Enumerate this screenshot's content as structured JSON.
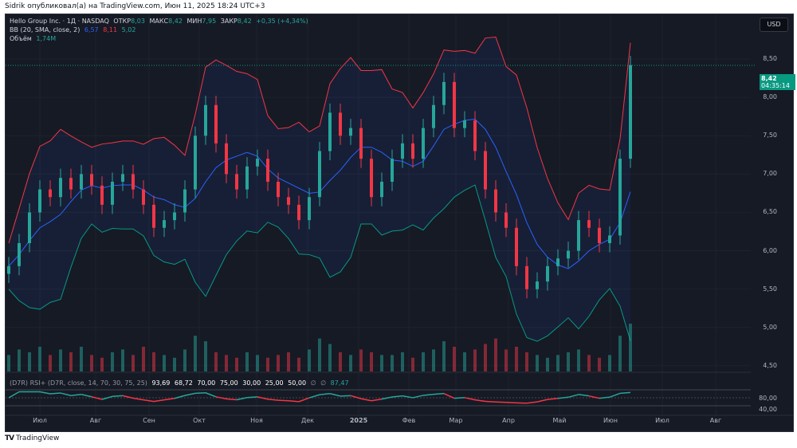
{
  "publisher_line": "Sidrik опубликовал(а) на TradingView.com, Июн 11, 2025 18:24 UTC+3",
  "symbol": {
    "title": "Hello Group Inc. · 1Д · NASDAQ",
    "open_label": "ОТКР",
    "open": "8,03",
    "high_label": "МАКС",
    "high": "8,42",
    "low_label": "МИН",
    "low": "7,95",
    "close_label": "ЗАКР",
    "close": "8,42",
    "change": "+0,35 (+4,34%)"
  },
  "bb": {
    "label": "BB (20, SMA, close, 2)",
    "basis": "6,57",
    "upper": "8,11",
    "lower": "5,02"
  },
  "volume": {
    "label": "Объём",
    "value": "1,74M"
  },
  "rsi": {
    "label": "(D7R) RSI+ (D7R, close, 14, 70, 30, 75, 25)",
    "values": [
      "93,69",
      "68,72",
      "70,00",
      "75,00",
      "30,00",
      "25,00",
      "50,00"
    ],
    "na": [
      "∅",
      "∅"
    ],
    "last": "87,47",
    "axis": [
      "80,00",
      "40,00"
    ]
  },
  "currency": "USD",
  "price_axis": [
    "8,50",
    "8,00",
    "7,50",
    "7,00",
    "6,50",
    "6,00",
    "5,50",
    "5,00",
    "4,50"
  ],
  "last_price": {
    "price": "8,42",
    "countdown": "04:35:14"
  },
  "time_axis": [
    "Июл",
    "Авг",
    "Сен",
    "Окт",
    "Ноя",
    "Дек",
    "2025",
    "Фев",
    "Мар",
    "Апр",
    "Май",
    "Июн",
    "Июл",
    "Авг"
  ],
  "footer": "TradingView",
  "colors": {
    "up": "#26a69a",
    "down": "#f23645",
    "basis": "#2962ff",
    "upper": "#f23645",
    "lower": "#089981",
    "bg": "#161a25"
  },
  "chart_data": {
    "type": "candlestick",
    "ylim": [
      4.5,
      8.5
    ],
    "closes": [
      5.8,
      6.1,
      6.5,
      6.8,
      6.7,
      6.95,
      6.8,
      7.0,
      6.85,
      6.6,
      6.9,
      7.0,
      6.8,
      6.6,
      6.3,
      6.4,
      6.5,
      6.8,
      7.5,
      7.9,
      7.4,
      7.0,
      6.8,
      7.1,
      7.2,
      6.9,
      6.7,
      6.6,
      6.4,
      6.7,
      7.3,
      7.8,
      7.5,
      7.6,
      7.2,
      6.7,
      6.9,
      7.2,
      7.4,
      7.2,
      7.6,
      7.9,
      8.2,
      7.6,
      7.7,
      7.3,
      6.8,
      6.5,
      6.3,
      5.8,
      5.5,
      5.6,
      5.8,
      5.9,
      6.0,
      6.4,
      6.3,
      6.1,
      6.2,
      7.2,
      8.42
    ],
    "volume_m": [
      0.6,
      0.8,
      0.7,
      0.9,
      0.6,
      0.8,
      0.7,
      0.9,
      0.6,
      0.5,
      0.7,
      0.8,
      0.6,
      0.9,
      0.7,
      0.6,
      0.5,
      0.8,
      1.3,
      1.1,
      0.7,
      0.6,
      0.5,
      0.7,
      0.6,
      0.5,
      0.6,
      0.7,
      0.5,
      0.8,
      1.2,
      1.0,
      0.7,
      0.6,
      0.8,
      0.7,
      0.6,
      0.6,
      0.7,
      0.5,
      0.7,
      0.8,
      1.1,
      0.9,
      0.7,
      0.8,
      1.0,
      1.2,
      0.8,
      0.9,
      0.7,
      0.6,
      0.5,
      0.6,
      0.7,
      0.8,
      0.6,
      0.5,
      0.6,
      1.3,
      1.74
    ]
  }
}
